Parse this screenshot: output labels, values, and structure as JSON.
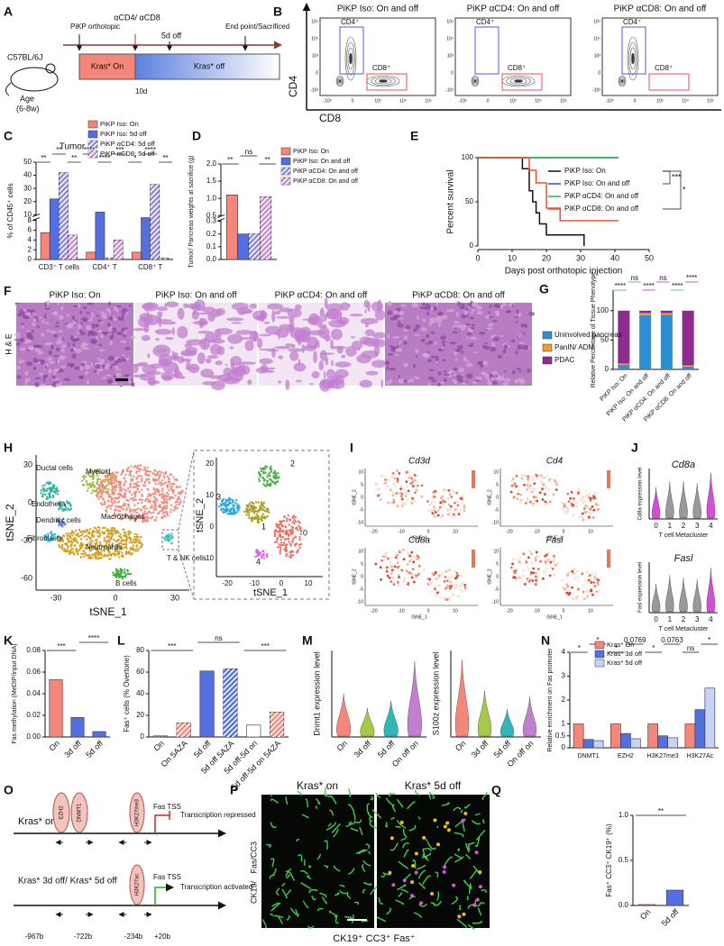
{
  "panel_labels": [
    "A",
    "B",
    "C",
    "D",
    "E",
    "F",
    "G",
    "H",
    "I",
    "J",
    "K",
    "L",
    "M",
    "N",
    "O",
    "P",
    "Q"
  ],
  "panel_a": {
    "strain": "C57BL/6J",
    "age": "Age",
    "age_range": "(6-8w)",
    "orthotopic": "PiKP orthotopic",
    "antibody": "αCD4/ αCD8",
    "off_5d": "5d off",
    "endpoint": "End point/Sacrificed",
    "on": "Kras* On",
    "off": "Kras* off",
    "day": "10d"
  },
  "panel_b": {
    "titles": [
      "PiKP Iso: On and off",
      "PiKP αCD4: On and off",
      "PiKP αCD8: On and off"
    ],
    "y_axis": "CD4",
    "x_axis": "CD8",
    "gate_cd4": "CD4⁺",
    "gate_cd8": "CD8⁺",
    "ticks": [
      "10⁵",
      "10⁴",
      "10³",
      "0",
      "-10³"
    ]
  },
  "panel_f": {
    "titles": [
      "PiKP Iso: On",
      "PiKP Iso: On and off",
      "PiKP αCD4: On and off",
      "PiKP αCD8: On and off"
    ],
    "stain": "H & E"
  },
  "panel_h": {
    "clusters": [
      "Ductal cells",
      "Myeloid",
      "Endothelia",
      "Dendritic cells",
      "Macrophages",
      "Fibroblasts",
      "Neutrophils",
      "T & NK cells",
      "B cells"
    ],
    "xlabel": "tSNE_1",
    "ylabel": "tSNE_2",
    "xticks": [
      -30,
      0,
      30
    ],
    "yticks": [
      30,
      0,
      -30,
      -60
    ],
    "zoom": {
      "clusters": [
        "0",
        "1",
        "2",
        "3",
        "4"
      ],
      "xlabel": "tSNE_1",
      "ylabel": "tSNE_2",
      "xticks": [
        -20,
        -10,
        0,
        10
      ],
      "yticks": [
        20,
        10,
        0,
        -10
      ]
    }
  },
  "panel_i": {
    "genes": [
      "Cd3d",
      "Cd4",
      "Cd8a",
      "Fasl"
    ],
    "xlabel": "tSNE_1",
    "ylabel": "tSNE_2",
    "xticks": [
      -20,
      -10,
      0,
      10
    ],
    "yticks": [
      10,
      5,
      0,
      -5,
      -10
    ]
  },
  "panel_o": {
    "state_on": "Kras* on",
    "ezh2": "EZH2",
    "dnmt1": "DNMT1",
    "h3k27me3": "H3K27me3",
    "fas_tss": "Fas TSS",
    "repressed": "Transcription repressed",
    "state_off": "Kras* 3d off/ Kras* 5d off",
    "h3k27ac": "H3K27ac",
    "activated": "Transcription activated",
    "positions": [
      "-967b",
      "-722b",
      "-234b",
      "+20b"
    ]
  },
  "panel_p": {
    "on": "Kras* on",
    "off": "Kras* 5d off",
    "stain": [
      "CK19/",
      "Fas/",
      "CC3"
    ],
    "caption": "CK19⁺ CC3⁺ Fas⁺"
  },
  "chart_data": [
    {
      "type": "bar",
      "title": "Tumor",
      "ylabel": "% of CD45⁺ cells",
      "categories": [
        "CD3⁺ T cells",
        "CD4⁺ T",
        "CD8⁺ T"
      ],
      "series": [
        {
          "name": "PiKP Iso: On",
          "color": "#f4877a",
          "values": [
            5.5,
            1.5,
            1.5
          ]
        },
        {
          "name": "PiKP Iso: 5d off",
          "color": "#5470e0",
          "values": [
            22,
            12,
            9
          ]
        },
        {
          "name": "PiKP αCD4: 5d off",
          "color": "#8f86e0",
          "hatch": true,
          "values": [
            42,
            0.3,
            33
          ]
        },
        {
          "name": "PiKP αCD8: 5d off",
          "color": "#c98bd2",
          "hatch": true,
          "values": [
            5,
            4,
            0.3
          ]
        }
      ],
      "ylim": [
        0,
        50
      ],
      "yticks": [
        0,
        2,
        4,
        6,
        8,
        10,
        20,
        30,
        40,
        50
      ],
      "ybreak": [
        8,
        10
      ],
      "annotations": [
        "**",
        "**",
        "**",
        "****",
        "****",
        "***",
        "*",
        "****",
        "**"
      ]
    },
    {
      "type": "bar",
      "ylabel": "Tumor/ Pancreas weights at sacrifice (g)",
      "categories": [
        null
      ],
      "series": [
        {
          "name": "PiKP Iso: On",
          "color": "#f4877a",
          "values": [
            1.1
          ]
        },
        {
          "name": "PiKP Iso: On and off",
          "color": "#5470e0",
          "values": [
            0.2
          ]
        },
        {
          "name": "PiKP αCD4: On and off",
          "color": "#8f86e0",
          "hatch": true,
          "values": [
            0.2
          ]
        },
        {
          "name": "PiKP αCD8: On and off",
          "color": "#c98bd2",
          "hatch": true,
          "values": [
            1.05
          ]
        }
      ],
      "ylim": [
        0,
        2
      ],
      "yticks": [
        {
          "value": 0,
          "label": "0.0"
        },
        0.1,
        0.2,
        0.3,
        0.5,
        {
          "value": 1,
          "label": "1.0"
        },
        1.5,
        {
          "value": 2,
          "label": "2.0"
        }
      ],
      "ybreak": [
        0.3,
        0.5
      ],
      "annotations": [
        "**",
        "ns",
        "**"
      ]
    },
    {
      "type": "line",
      "step": true,
      "xlabel": "Days post orthotopic injection",
      "ylabel": "Percent survival",
      "x": [
        0,
        13,
        15,
        16,
        17,
        18,
        20,
        24,
        31,
        41
      ],
      "series": [
        {
          "name": "PiKP Iso: On",
          "color": "#111111",
          "values": [
            100,
            87.5,
            62.5,
            50,
            37.5,
            25,
            12.5,
            12.5,
            0,
            null
          ]
        },
        {
          "name": "PiKP Iso: On and off",
          "color": "#2250d8",
          "values": [
            100,
            100,
            100,
            100,
            100,
            100,
            100,
            100,
            100,
            100
          ]
        },
        {
          "name": "PiKP αCD4: On and off",
          "color": "#2cb84a",
          "values": [
            100,
            100,
            100,
            100,
            100,
            100,
            100,
            100,
            100,
            100
          ]
        },
        {
          "name": "PiKP αCD8: On and off",
          "color": "#f05030",
          "values": [
            100,
            100,
            85.7,
            85.7,
            71.4,
            71.4,
            42.9,
            28.6,
            28.6,
            28.6
          ]
        }
      ],
      "xlim": [
        0,
        50
      ],
      "xticks": [
        0,
        10,
        20,
        30,
        40,
        50
      ],
      "ylim": [
        0,
        100
      ],
      "yticks": [
        0,
        50,
        100
      ],
      "annotations": [
        "***",
        "*"
      ]
    },
    {
      "type": "stacked_bar",
      "ylabel": "Relative Percentage of Tissue Phenotype",
      "categories": [
        "PiKP Iso: On",
        "PiKP Iso: On and off",
        "PiKP αCD4: On and off",
        "PiKP αCD8: On and off"
      ],
      "series": [
        {
          "name": "Uninvolved pancreas",
          "color": "#2b8fd1",
          "values": [
            8,
            92,
            93,
            5
          ]
        },
        {
          "name": "PanIN/ ADM",
          "color": "#f39a2b",
          "values": [
            2,
            4,
            3,
            2
          ]
        },
        {
          "name": "PDAC",
          "color": "#8e2b8f",
          "values": [
            90,
            4,
            4,
            93
          ]
        }
      ],
      "ylim": [
        0,
        135
      ],
      "yticks": [
        0,
        50,
        100
      ],
      "annotations": [
        {
          "text": "****",
          "color": "#2b8fd1"
        },
        {
          "text": "ns",
          "color": "#2b8fd1"
        },
        {
          "text": "****",
          "color": "#8e2b8f"
        },
        {
          "text": "ns",
          "color": "#8e2b8f"
        },
        {
          "text": "****",
          "color": "#2b8fd1"
        },
        {
          "text": "****",
          "color": "#8e2b8f"
        }
      ]
    },
    {
      "type": "violin",
      "title": "Cd8a",
      "ylabel": "Cd8a expression level",
      "xlabel": "T cell Metacluster",
      "categories": [
        "0",
        "1",
        "2",
        "3",
        "4"
      ],
      "values": [
        2.2,
        2.6,
        2.6,
        2.5,
        3.2
      ],
      "colors": [
        "#d24fd6",
        "#999999",
        "#999999",
        "#999999",
        "#d24fd6"
      ],
      "ylim": [
        0,
        3.5
      ]
    },
    {
      "type": "violin",
      "title": "Fasl",
      "ylabel": "Fasl expression level",
      "xlabel": "T cell Metacluster",
      "categories": [
        "0",
        "1",
        "2",
        "3",
        "4"
      ],
      "values": [
        2.0,
        2.6,
        2.4,
        2.3,
        3.1
      ],
      "colors": [
        "#999999",
        "#999999",
        "#999999",
        "#999999",
        "#d24fd6"
      ],
      "ylim": [
        0,
        3.5
      ]
    },
    {
      "type": "bar",
      "ylabel": "Fas methylation (MeDIP/input DNA)",
      "categories": [
        "On",
        "3d off",
        "5d off"
      ],
      "values": [
        0.053,
        0.018,
        0.005
      ],
      "colors": [
        "#f4877a",
        "#5470e0",
        "#5470e0"
      ],
      "ylim": [
        0,
        0.08
      ],
      "yticks": [
        {
          "value": 0,
          "label": "0.00"
        },
        0.02,
        0.04,
        0.06,
        0.08
      ],
      "annotations": [
        "***",
        "****"
      ]
    },
    {
      "type": "bar",
      "ylabel": "Fas⁺ cells (% Overtone)",
      "categories": [
        "On",
        "On 5AZA",
        "5d off",
        "5d off 5AZA",
        "5d off-5d on",
        "5d off-5d on 5AZA"
      ],
      "values": [
        1,
        13,
        61,
        63,
        11,
        23
      ],
      "colors": [
        "#f4877a",
        "#f4877a",
        "#5470e0",
        "#5470e0",
        "#ffffff",
        "#f4877a"
      ],
      "hatch": [
        false,
        true,
        false,
        true,
        false,
        true
      ],
      "ylim": [
        0,
        80
      ],
      "yticks": [
        0,
        20,
        40,
        60,
        80
      ],
      "annotations": [
        "***",
        "ns",
        "***"
      ]
    },
    {
      "type": "violin",
      "ylabel": "Dnmt1 expression level",
      "categories": [
        "On",
        "3d off",
        "5d off",
        "On off on"
      ],
      "values": [
        1.2,
        0.8,
        1.0,
        2.1
      ],
      "colors": [
        "#f4877a",
        "#a6c94a",
        "#2fb6b6",
        "#c27fcf"
      ],
      "ylim": [
        0,
        2.4
      ]
    },
    {
      "type": "violin",
      "ylabel": "S100z expression level",
      "categories": [
        "On",
        "3d off",
        "5d off",
        "On off on"
      ],
      "values": [
        2.5,
        1.5,
        0.9,
        1.3
      ],
      "colors": [
        "#f4877a",
        "#a6c94a",
        "#2fb6b6",
        "#c27fcf"
      ],
      "ylim": [
        0,
        2.8
      ]
    },
    {
      "type": "bar",
      "ylabel": "Relative enrichment on Fas promoter",
      "categories": [
        "DNMT1",
        "EZH2",
        "H3K27me3",
        "H3K27Ac"
      ],
      "series": [
        {
          "name": "Kras* On",
          "color": "#f4877a",
          "values": [
            1,
            1,
            1,
            1
          ]
        },
        {
          "name": "Kras* 3d off",
          "color": "#5470e0",
          "values": [
            0.35,
            0.6,
            0.5,
            1.6
          ]
        },
        {
          "name": "Kras* 5d off",
          "color": "#c7d3f5",
          "values": [
            0.3,
            0.38,
            0.42,
            2.5
          ]
        }
      ],
      "ylim": [
        0,
        4
      ],
      "yticks": [
        0,
        0.5,
        1,
        2,
        3,
        4
      ],
      "annotations": [
        "*",
        "*",
        "*",
        "0.0769",
        "*",
        "0.0763",
        "ns",
        "*"
      ]
    },
    {
      "type": "bar",
      "ylabel": "Fas⁺ CC3⁺ CK19⁺ (%)",
      "categories": [
        "On",
        "5d off"
      ],
      "values": [
        0.01,
        0.17
      ],
      "colors": [
        "#f4877a",
        "#5470e0"
      ],
      "ylim": [
        0,
        1
      ],
      "yticks": [
        {
          "value": 0,
          "label": "0.0"
        },
        0.5,
        {
          "value": 1,
          "label": "1.0"
        }
      ],
      "annotations": [
        "**"
      ]
    }
  ]
}
